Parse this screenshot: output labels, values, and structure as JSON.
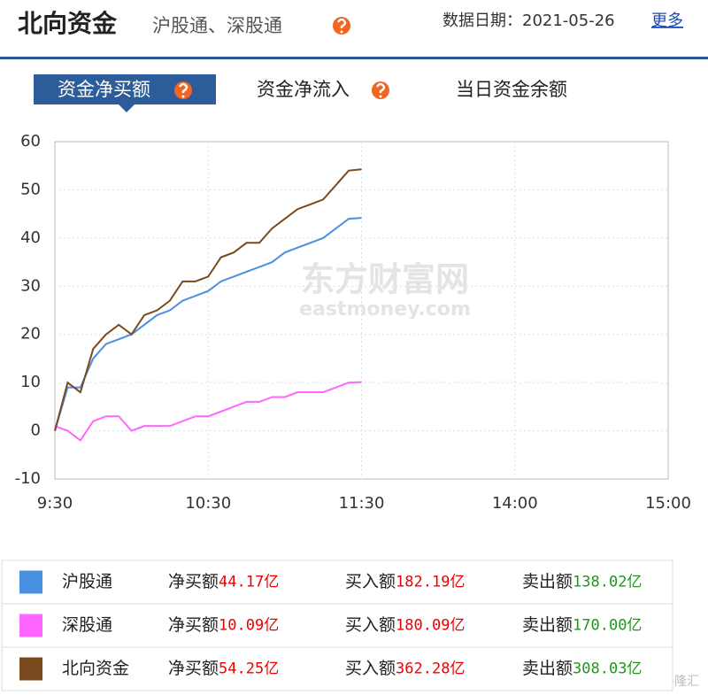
{
  "header": {
    "title": "北向资金",
    "subtitle": "沪股通、深股通",
    "date": "数据日期：2021-05-26",
    "more": "更多"
  },
  "tabs": [
    "资金净买额",
    "资金净流入",
    "当日资金余额"
  ],
  "chart_data": {
    "type": "line",
    "watermark": "东方财富网",
    "watermark_url": "eastmoney.com",
    "x": [
      0,
      5,
      10,
      15,
      20,
      25,
      30,
      35,
      40,
      45,
      50,
      55,
      60,
      65,
      70,
      75,
      80,
      85,
      90,
      95,
      100,
      105,
      110,
      115,
      120
    ],
    "xlim": [
      0,
      240
    ],
    "xticks": [
      {
        "value": 0,
        "label": "9:30"
      },
      {
        "value": 60,
        "label": "10:30"
      },
      {
        "value": 120,
        "label": "11:30"
      },
      {
        "value": 180,
        "label": "14:00"
      },
      {
        "value": 240,
        "label": "15:00"
      }
    ],
    "ylim": [
      -10,
      60
    ],
    "yticks": [
      -10,
      0,
      10,
      20,
      30,
      40,
      50,
      60
    ],
    "grid": true,
    "series": [
      {
        "name": "沪股通",
        "color": "#4a90e2",
        "values": [
          0,
          9,
          9,
          15,
          18,
          19,
          20,
          22,
          24,
          25,
          27,
          28,
          29,
          31,
          32,
          33,
          34,
          35,
          37,
          38,
          39,
          40,
          42,
          44,
          44.17
        ]
      },
      {
        "name": "深股通",
        "color": "#ff66ff",
        "values": [
          1,
          0,
          -2,
          2,
          3,
          3,
          0,
          1,
          1,
          1,
          2,
          3,
          3,
          4,
          5,
          6,
          6,
          7,
          7,
          8,
          8,
          8,
          9,
          10,
          10.09
        ]
      },
      {
        "name": "北向资金",
        "color": "#7a4a1e",
        "values": [
          0,
          10,
          8,
          17,
          20,
          22,
          20,
          24,
          25,
          27,
          31,
          31,
          32,
          36,
          37,
          39,
          39,
          42,
          44,
          46,
          47,
          48,
          51,
          54,
          54.25
        ]
      }
    ]
  },
  "legend_table": {
    "rows": [
      {
        "net_label": "净买额",
        "net": "44.17亿",
        "buy_label": "买入额",
        "buy": "182.19亿",
        "sell_label": "卖出额",
        "sell": "138.02亿"
      },
      {
        "net_label": "净买额",
        "net": "10.09亿",
        "buy_label": "买入额",
        "buy": "180.09亿",
        "sell_label": "卖出额",
        "sell": "170.00亿"
      },
      {
        "net_label": "净买额",
        "net": "54.25亿",
        "buy_label": "买入额",
        "buy": "362.28亿",
        "sell_label": "卖出额",
        "sell": "308.03亿"
      }
    ]
  },
  "corner_watermark": "格隆汇"
}
